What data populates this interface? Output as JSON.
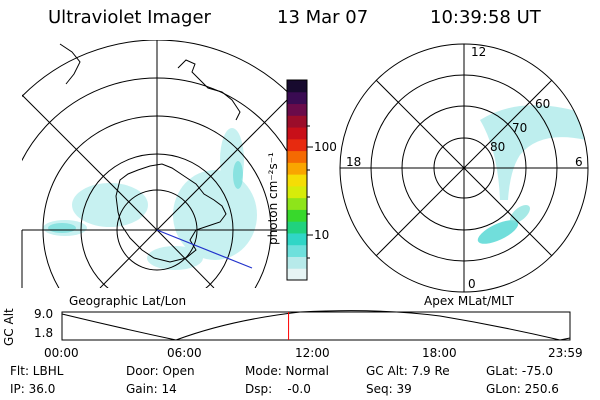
{
  "header": {
    "instrument": "Ultraviolet Imager",
    "date": "13 Mar 07",
    "time": "10:39:58 UT"
  },
  "left_panel": {
    "caption": "Geographic Lat/Lon"
  },
  "right_panel": {
    "caption": "Apex MLat/MLT",
    "mlt_labels": [
      "12",
      "18",
      "6",
      "0"
    ],
    "mlat_labels": [
      "60",
      "70",
      "80"
    ]
  },
  "colorbar": {
    "unit_label": "photon cm⁻²s⁻¹",
    "ticks": [
      "100",
      "10"
    ],
    "colors": [
      "#e6f4f4",
      "#b7eaea",
      "#6ee0dc",
      "#30d6c6",
      "#20d27e",
      "#38d82c",
      "#8ee41a",
      "#d6ec0a",
      "#f5dd05",
      "#f9a500",
      "#f46a02",
      "#e72a0f",
      "#c80f19",
      "#9b0d2a",
      "#6a0b4a",
      "#3a0b52",
      "#170a2e"
    ]
  },
  "timeline": {
    "ylabel": "GC Alt",
    "y_ticks": [
      "9.0",
      "1.8"
    ],
    "x_ticks": [
      "00:00",
      "06:00",
      "12:00",
      "18:00",
      "23:59"
    ],
    "current_time_fraction": 0.446,
    "marker_color": "#ff0000"
  },
  "info": {
    "filter": "Flt: LBHL",
    "door": "Door: Open",
    "mode": "Mode: Normal",
    "gc_alt": "GC Alt: 7.9 Re",
    "glat": "GLat: -75.0",
    "ip": "IP: 36.0",
    "gain": "Gain: 14",
    "dsp": "Dsp:    -0.0",
    "seq": "Seq: 39",
    "glon": "GLon: 250.6"
  }
}
